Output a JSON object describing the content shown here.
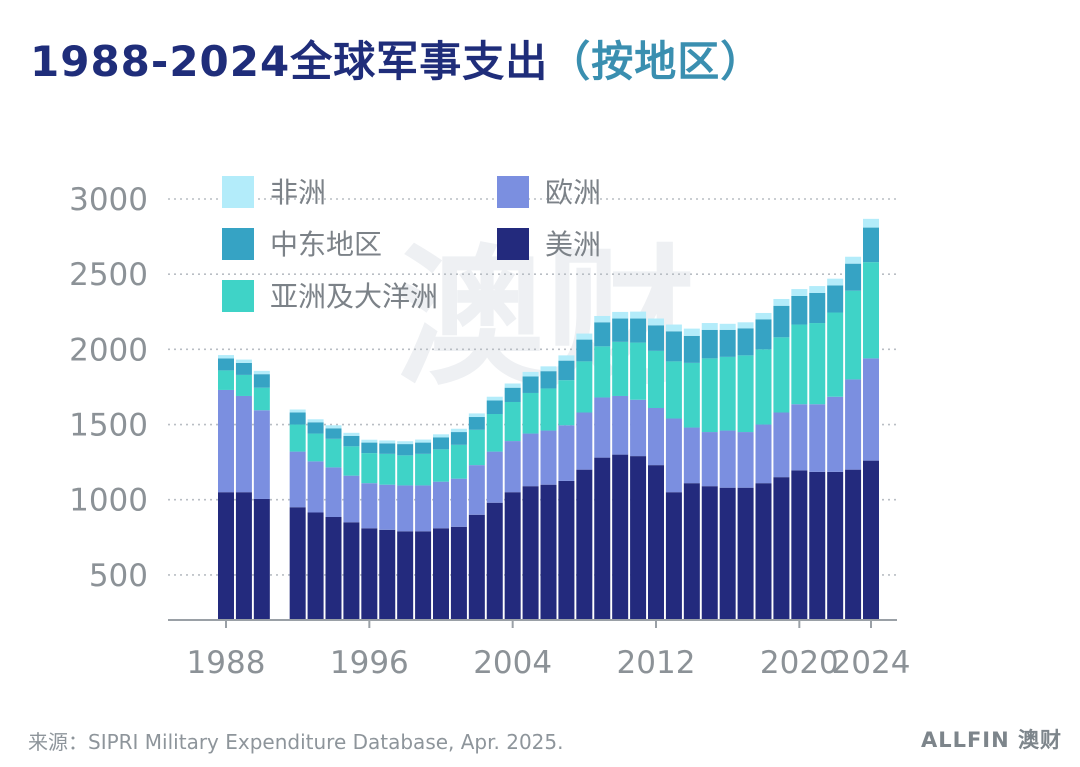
{
  "title": "1988-2024全球军事支出",
  "title_suffix": "（按地区）",
  "source": "来源：SIPRI Military Expenditure Database, Apr. 2025.",
  "brand": "ALLFIN 澳财",
  "watermark": "澳财",
  "chart_data": {
    "type": "bar",
    "stacked": true,
    "title": "",
    "xlabel": "",
    "ylabel": "",
    "ylim": [
      200,
      3150
    ],
    "y_ticks": [
      500,
      1000,
      1500,
      2000,
      2500,
      3000
    ],
    "x_tick_labels": [
      "1988",
      "1996",
      "2004",
      "2012",
      "2020",
      "2024"
    ],
    "grid": true,
    "legend_position": "top-left",
    "categories": [
      1988,
      1989,
      1990,
      1991,
      1992,
      1993,
      1994,
      1995,
      1996,
      1997,
      1998,
      1999,
      2000,
      2001,
      2002,
      2003,
      2004,
      2005,
      2006,
      2007,
      2008,
      2009,
      2010,
      2011,
      2012,
      2013,
      2014,
      2015,
      2016,
      2017,
      2018,
      2019,
      2020,
      2021,
      2022,
      2023,
      2024
    ],
    "series": [
      {
        "name": "美洲",
        "color": "#232a7d",
        "values": [
          850,
          850,
          805,
          null,
          750,
          715,
          685,
          650,
          610,
          600,
          590,
          590,
          610,
          620,
          700,
          780,
          850,
          890,
          900,
          925,
          1000,
          1080,
          1100,
          1090,
          1030,
          850,
          910,
          890,
          880,
          880,
          910,
          950,
          995,
          985,
          985,
          1000,
          1060
        ]
      },
      {
        "name": "欧洲",
        "color": "#7b8fe0",
        "values": [
          680,
          640,
          590,
          null,
          370,
          340,
          330,
          310,
          300,
          300,
          305,
          305,
          310,
          320,
          330,
          340,
          340,
          350,
          360,
          370,
          380,
          400,
          390,
          375,
          380,
          490,
          370,
          360,
          380,
          370,
          390,
          430,
          440,
          450,
          500,
          600,
          680
        ]
      },
      {
        "name": "亚洲及大洋洲",
        "color": "#3fd3c7",
        "values": [
          130,
          140,
          150,
          null,
          180,
          185,
          190,
          195,
          200,
          205,
          200,
          210,
          215,
          225,
          235,
          250,
          260,
          270,
          280,
          300,
          340,
          340,
          360,
          380,
          380,
          380,
          430,
          490,
          490,
          510,
          500,
          500,
          530,
          540,
          560,
          590,
          640
        ]
      },
      {
        "name": "中东地区",
        "color": "#36a3c4",
        "values": [
          80,
          80,
          90,
          null,
          80,
          75,
          70,
          70,
          70,
          70,
          75,
          75,
          80,
          85,
          85,
          90,
          95,
          110,
          115,
          130,
          145,
          160,
          155,
          160,
          170,
          200,
          180,
          190,
          180,
          180,
          200,
          210,
          190,
          200,
          180,
          180,
          230
        ]
      },
      {
        "name": "非洲",
        "color": "#b3ecfa",
        "values": [
          22,
          22,
          22,
          null,
          20,
          20,
          20,
          20,
          19,
          19,
          19,
          20,
          20,
          22,
          24,
          25,
          28,
          30,
          32,
          35,
          40,
          42,
          44,
          46,
          45,
          45,
          48,
          45,
          40,
          40,
          42,
          45,
          46,
          46,
          45,
          46,
          58
        ]
      }
    ]
  }
}
